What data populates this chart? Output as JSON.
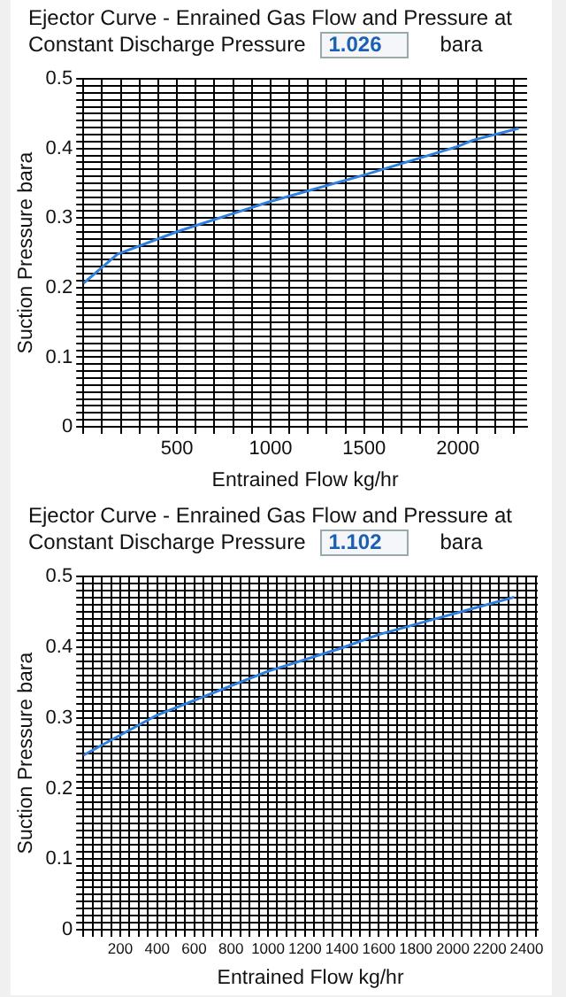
{
  "chart_data": [
    {
      "type": "line",
      "title": "Ejector Curve - Enrained Gas Flow and Pressure at Constant Discharge Pressure",
      "annotations": [
        "1.026",
        "bara"
      ],
      "xlabel": "Entrained Flow kg/hr",
      "ylabel": "Suction Pressure bara",
      "grid": true,
      "marker": "none",
      "line_style": "solid",
      "x": [
        0,
        182,
        506,
        1000,
        1500,
        2000,
        2080,
        2325
      ],
      "series": [
        {
          "color": "#2f7fdf",
          "values": [
            0.206,
            0.248,
            0.281,
            0.324,
            0.362,
            0.403,
            0.412,
            0.429
          ]
        }
      ],
      "xlim": [
        0,
        2370
      ],
      "xticks": [
        {
          "value": 0,
          "label": null
        },
        {
          "value": 100,
          "label": null
        },
        {
          "value": 200,
          "label": null
        },
        {
          "value": 300,
          "label": null
        },
        {
          "value": 400,
          "label": null
        },
        500,
        {
          "value": 600,
          "label": null
        },
        {
          "value": 700,
          "label": null
        },
        {
          "value": 800,
          "label": null
        },
        {
          "value": 900,
          "label": null
        },
        1000,
        {
          "value": 1100,
          "label": null
        },
        {
          "value": 1200,
          "label": null
        },
        {
          "value": 1300,
          "label": null
        },
        {
          "value": 1400,
          "label": null
        },
        1500,
        {
          "value": 1600,
          "label": null
        },
        {
          "value": 1700,
          "label": null
        },
        {
          "value": 1800,
          "label": null
        },
        {
          "value": 1900,
          "label": null
        },
        2000,
        {
          "value": 2100,
          "label": null
        },
        {
          "value": 2200,
          "label": null
        },
        {
          "value": 2300,
          "label": null
        }
      ],
      "ylim": [
        0,
        0.5
      ],
      "yticks": [
        0,
        {
          "value": 0.01,
          "label": null
        },
        {
          "value": 0.02,
          "label": null
        },
        {
          "value": 0.03,
          "label": null
        },
        {
          "value": 0.04,
          "label": null
        },
        {
          "value": 0.05,
          "label": null
        },
        {
          "value": 0.06,
          "label": null
        },
        {
          "value": 0.07,
          "label": null
        },
        {
          "value": 0.08,
          "label": null
        },
        {
          "value": 0.09,
          "label": null
        },
        0.1,
        {
          "value": 0.11,
          "label": null
        },
        {
          "value": 0.12,
          "label": null
        },
        {
          "value": 0.13,
          "label": null
        },
        {
          "value": 0.14,
          "label": null
        },
        {
          "value": 0.15,
          "label": null
        },
        {
          "value": 0.16,
          "label": null
        },
        {
          "value": 0.17,
          "label": null
        },
        {
          "value": 0.18,
          "label": null
        },
        {
          "value": 0.19,
          "label": null
        },
        0.2,
        {
          "value": 0.21,
          "label": null
        },
        {
          "value": 0.22,
          "label": null
        },
        {
          "value": 0.23,
          "label": null
        },
        {
          "value": 0.24,
          "label": null
        },
        {
          "value": 0.25,
          "label": null
        },
        {
          "value": 0.26,
          "label": null
        },
        {
          "value": 0.27,
          "label": null
        },
        {
          "value": 0.28,
          "label": null
        },
        {
          "value": 0.29,
          "label": null
        },
        0.3,
        {
          "value": 0.31,
          "label": null
        },
        {
          "value": 0.32,
          "label": null
        },
        {
          "value": 0.33,
          "label": null
        },
        {
          "value": 0.34,
          "label": null
        },
        {
          "value": 0.35,
          "label": null
        },
        {
          "value": 0.36,
          "label": null
        },
        {
          "value": 0.37,
          "label": null
        },
        {
          "value": 0.38,
          "label": null
        },
        {
          "value": 0.39,
          "label": null
        },
        0.4,
        {
          "value": 0.41,
          "label": null
        },
        {
          "value": 0.42,
          "label": null
        },
        {
          "value": 0.43,
          "label": null
        },
        {
          "value": 0.44,
          "label": null
        },
        {
          "value": 0.45,
          "label": null
        },
        {
          "value": 0.46,
          "label": null
        },
        {
          "value": 0.47,
          "label": null
        },
        {
          "value": 0.48,
          "label": null
        },
        {
          "value": 0.49,
          "label": null
        },
        0.5
      ]
    },
    {
      "type": "line",
      "title": "Ejector Curve - Enrained Gas Flow and Pressure at Constant Discharge Pressure",
      "annotations": [
        "1.102",
        "bara"
      ],
      "xlabel": "Entrained Flow kg/hr",
      "ylabel": "Suction Pressure bara",
      "grid": true,
      "marker": "none",
      "line_style": "solid",
      "x": [
        0,
        400,
        1000,
        1400,
        1600,
        2000,
        2333
      ],
      "series": [
        {
          "color": "#2f7fdf",
          "values": [
            0.247,
            0.304,
            0.366,
            0.399,
            0.418,
            0.447,
            0.471
          ]
        }
      ],
      "xlim": [
        0,
        2460
      ],
      "xticks": [
        {
          "value": 0,
          "label": null
        },
        {
          "value": 50,
          "label": null
        },
        {
          "value": 100,
          "label": null
        },
        {
          "value": 150,
          "label": null
        },
        200,
        {
          "value": 250,
          "label": null
        },
        {
          "value": 300,
          "label": null
        },
        {
          "value": 350,
          "label": null
        },
        400,
        {
          "value": 450,
          "label": null
        },
        {
          "value": 500,
          "label": null
        },
        {
          "value": 550,
          "label": null
        },
        600,
        {
          "value": 650,
          "label": null
        },
        {
          "value": 700,
          "label": null
        },
        {
          "value": 750,
          "label": null
        },
        800,
        {
          "value": 850,
          "label": null
        },
        {
          "value": 900,
          "label": null
        },
        {
          "value": 950,
          "label": null
        },
        1000,
        {
          "value": 1050,
          "label": null
        },
        {
          "value": 1100,
          "label": null
        },
        {
          "value": 1150,
          "label": null
        },
        1200,
        {
          "value": 1250,
          "label": null
        },
        {
          "value": 1300,
          "label": null
        },
        {
          "value": 1350,
          "label": null
        },
        1400,
        {
          "value": 1450,
          "label": null
        },
        {
          "value": 1500,
          "label": null
        },
        {
          "value": 1550,
          "label": null
        },
        1600,
        {
          "value": 1650,
          "label": null
        },
        {
          "value": 1700,
          "label": null
        },
        {
          "value": 1750,
          "label": null
        },
        1800,
        {
          "value": 1850,
          "label": null
        },
        {
          "value": 1900,
          "label": null
        },
        {
          "value": 1950,
          "label": null
        },
        2000,
        {
          "value": 2050,
          "label": null
        },
        {
          "value": 2100,
          "label": null
        },
        {
          "value": 2150,
          "label": null
        },
        2200,
        {
          "value": 2250,
          "label": null
        },
        {
          "value": 2300,
          "label": null
        },
        {
          "value": 2350,
          "label": null
        },
        2400,
        {
          "value": 2450,
          "label": null
        }
      ],
      "ylim": [
        0,
        0.5
      ],
      "yticks": [
        0,
        {
          "value": 0.01,
          "label": null
        },
        {
          "value": 0.02,
          "label": null
        },
        {
          "value": 0.03,
          "label": null
        },
        {
          "value": 0.04,
          "label": null
        },
        {
          "value": 0.05,
          "label": null
        },
        {
          "value": 0.06,
          "label": null
        },
        {
          "value": 0.07,
          "label": null
        },
        {
          "value": 0.08,
          "label": null
        },
        {
          "value": 0.09,
          "label": null
        },
        0.1,
        {
          "value": 0.11,
          "label": null
        },
        {
          "value": 0.12,
          "label": null
        },
        {
          "value": 0.13,
          "label": null
        },
        {
          "value": 0.14,
          "label": null
        },
        {
          "value": 0.15,
          "label": null
        },
        {
          "value": 0.16,
          "label": null
        },
        {
          "value": 0.17,
          "label": null
        },
        {
          "value": 0.18,
          "label": null
        },
        {
          "value": 0.19,
          "label": null
        },
        0.2,
        {
          "value": 0.21,
          "label": null
        },
        {
          "value": 0.22,
          "label": null
        },
        {
          "value": 0.23,
          "label": null
        },
        {
          "value": 0.24,
          "label": null
        },
        {
          "value": 0.25,
          "label": null
        },
        {
          "value": 0.26,
          "label": null
        },
        {
          "value": 0.27,
          "label": null
        },
        {
          "value": 0.28,
          "label": null
        },
        {
          "value": 0.29,
          "label": null
        },
        0.3,
        {
          "value": 0.31,
          "label": null
        },
        {
          "value": 0.32,
          "label": null
        },
        {
          "value": 0.33,
          "label": null
        },
        {
          "value": 0.34,
          "label": null
        },
        {
          "value": 0.35,
          "label": null
        },
        {
          "value": 0.36,
          "label": null
        },
        {
          "value": 0.37,
          "label": null
        },
        {
          "value": 0.38,
          "label": null
        },
        {
          "value": 0.39,
          "label": null
        },
        0.4,
        {
          "value": 0.41,
          "label": null
        },
        {
          "value": 0.42,
          "label": null
        },
        {
          "value": 0.43,
          "label": null
        },
        {
          "value": 0.44,
          "label": null
        },
        {
          "value": 0.45,
          "label": null
        },
        {
          "value": 0.46,
          "label": null
        },
        {
          "value": 0.47,
          "label": null
        },
        {
          "value": 0.48,
          "label": null
        },
        {
          "value": 0.49,
          "label": null
        },
        0.5
      ]
    }
  ]
}
